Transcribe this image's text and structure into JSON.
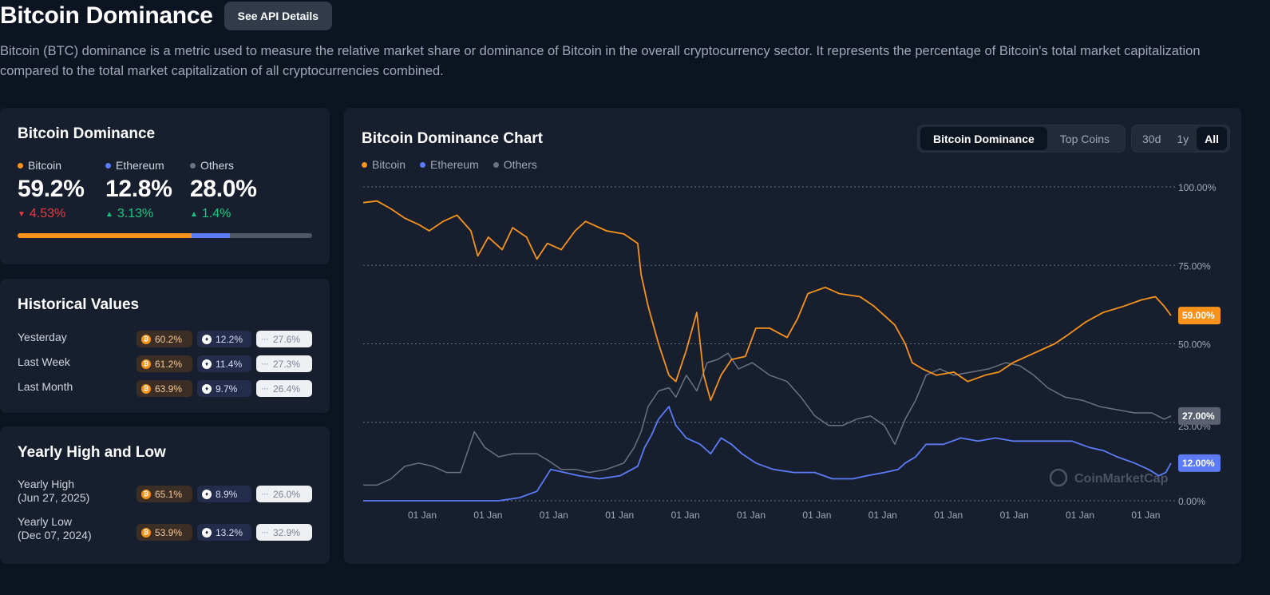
{
  "header": {
    "title": "Bitcoin Dominance",
    "api_button": "See API Details",
    "description": "Bitcoin (BTC) dominance is a metric used to measure the relative market share or dominance of Bitcoin in the overall cryptocurrency sector. It represents the percentage of Bitcoin's total market capitalization compared to the total market capitalization of all cryptocurrencies combined."
  },
  "colors": {
    "bitcoin": "#f7931a",
    "ethereum": "#5b7cf6",
    "others": "#6b7280",
    "up": "#16c784",
    "down": "#ea3943"
  },
  "dominance": {
    "title": "Bitcoin Dominance",
    "coins": [
      {
        "name": "Bitcoin",
        "value": "59.2%",
        "change": "4.53%",
        "direction": "down",
        "share": 59.2
      },
      {
        "name": "Ethereum",
        "value": "12.8%",
        "change": "3.13%",
        "direction": "up",
        "share": 12.8
      },
      {
        "name": "Others",
        "value": "28.0%",
        "change": "1.4%",
        "direction": "up",
        "share": 28.0
      }
    ]
  },
  "historical": {
    "title": "Historical Values",
    "rows": [
      {
        "label": "Yesterday",
        "btc": "60.2%",
        "eth": "12.2%",
        "others": "27.6%"
      },
      {
        "label": "Last Week",
        "btc": "61.2%",
        "eth": "11.4%",
        "others": "27.3%"
      },
      {
        "label": "Last Month",
        "btc": "63.9%",
        "eth": "9.7%",
        "others": "26.4%"
      }
    ]
  },
  "yearly": {
    "title": "Yearly High and Low",
    "rows": [
      {
        "label": "Yearly High",
        "date": "(Jun 27, 2025)",
        "btc": "65.1%",
        "eth": "8.9%",
        "others": "26.0%"
      },
      {
        "label": "Yearly Low",
        "date": "(Dec 07, 2024)",
        "btc": "53.9%",
        "eth": "13.2%",
        "others": "32.9%"
      }
    ]
  },
  "chart_panel": {
    "title": "Bitcoin Dominance Chart",
    "view_tabs": [
      "Bitcoin Dominance",
      "Top Coins"
    ],
    "active_view": "Bitcoin Dominance",
    "range_tabs": [
      "30d",
      "1y",
      "All"
    ],
    "active_range": "All",
    "watermark": "CoinMarketCap"
  },
  "chart_data": {
    "type": "line",
    "title": "Bitcoin Dominance Chart",
    "ylim": [
      0,
      100
    ],
    "yticks": [
      "0.00%",
      "25.00%",
      "50.00%",
      "75.00%",
      "100.00%"
    ],
    "xtick_labels": [
      "01 Jan",
      "01 Jan",
      "01 Jan",
      "01 Jan",
      "01 Jan",
      "01 Jan",
      "01 Jan",
      "01 Jan",
      "01 Jan",
      "01 Jan",
      "01 Jan",
      "01 Jan"
    ],
    "end_labels": {
      "Bitcoin": "59.00%",
      "Others": "27.00%",
      "Ethereum": "12.00%"
    },
    "series": [
      {
        "name": "Bitcoin",
        "color": "#f7931a",
        "points": [
          [
            0,
            95
          ],
          [
            0.8,
            95.5
          ],
          [
            1.6,
            93
          ],
          [
            2.4,
            90
          ],
          [
            3.2,
            88
          ],
          [
            3.8,
            86
          ],
          [
            4.6,
            89
          ],
          [
            5.4,
            91
          ],
          [
            6.2,
            86
          ],
          [
            6.6,
            78
          ],
          [
            7.2,
            84
          ],
          [
            8,
            80
          ],
          [
            8.6,
            87
          ],
          [
            9.4,
            84
          ],
          [
            10,
            77
          ],
          [
            10.6,
            82
          ],
          [
            11.4,
            80
          ],
          [
            12.2,
            86
          ],
          [
            12.8,
            89
          ],
          [
            14,
            86
          ],
          [
            15,
            85
          ],
          [
            15.8,
            82
          ],
          [
            16,
            72
          ],
          [
            16.4,
            62
          ],
          [
            17,
            50
          ],
          [
            17.6,
            40
          ],
          [
            18,
            38
          ],
          [
            18.6,
            48
          ],
          [
            19.2,
            60
          ],
          [
            19.6,
            40
          ],
          [
            20,
            32
          ],
          [
            20.6,
            40
          ],
          [
            21.2,
            45
          ],
          [
            22,
            46
          ],
          [
            22.6,
            55
          ],
          [
            23.4,
            55
          ],
          [
            24.4,
            52
          ],
          [
            25,
            58
          ],
          [
            25.6,
            66
          ],
          [
            26.6,
            68
          ],
          [
            27.4,
            66
          ],
          [
            28.6,
            65
          ],
          [
            29.4,
            62
          ],
          [
            30,
            59
          ],
          [
            30.6,
            56
          ],
          [
            31.2,
            50
          ],
          [
            31.6,
            44
          ],
          [
            32.2,
            42
          ],
          [
            33,
            40
          ],
          [
            34,
            41
          ],
          [
            34.8,
            38
          ],
          [
            35.8,
            40
          ],
          [
            36.6,
            41
          ],
          [
            37.4,
            44
          ],
          [
            38.6,
            47
          ],
          [
            39.8,
            50
          ],
          [
            40.6,
            53
          ],
          [
            41.6,
            57
          ],
          [
            42.6,
            60
          ],
          [
            43.8,
            62
          ],
          [
            44.8,
            64
          ],
          [
            45.6,
            65
          ],
          [
            46.1,
            62
          ],
          [
            46.5,
            59
          ]
        ]
      },
      {
        "name": "Ethereum",
        "color": "#5b7cf6",
        "points": [
          [
            0,
            0
          ],
          [
            6,
            0
          ],
          [
            7.8,
            0
          ],
          [
            9,
            1
          ],
          [
            10,
            3
          ],
          [
            10.8,
            10
          ],
          [
            11.6,
            9
          ],
          [
            12.4,
            8
          ],
          [
            13.6,
            7
          ],
          [
            14.8,
            8
          ],
          [
            15.8,
            11
          ],
          [
            16.2,
            17
          ],
          [
            16.6,
            21
          ],
          [
            17,
            26
          ],
          [
            17.6,
            30
          ],
          [
            18,
            24
          ],
          [
            18.6,
            20
          ],
          [
            19.4,
            18
          ],
          [
            20,
            15
          ],
          [
            20.6,
            20
          ],
          [
            21.2,
            18
          ],
          [
            21.8,
            15
          ],
          [
            22.6,
            12
          ],
          [
            23.6,
            10
          ],
          [
            24.8,
            9
          ],
          [
            26,
            9
          ],
          [
            27,
            7
          ],
          [
            28.2,
            7
          ],
          [
            29,
            8
          ],
          [
            30,
            9
          ],
          [
            30.8,
            10
          ],
          [
            31.2,
            12
          ],
          [
            31.8,
            14
          ],
          [
            32.4,
            18
          ],
          [
            33.4,
            18
          ],
          [
            34.4,
            20
          ],
          [
            35.4,
            19
          ],
          [
            36.4,
            20
          ],
          [
            37.4,
            19
          ],
          [
            38.6,
            19
          ],
          [
            39.8,
            19
          ],
          [
            40.8,
            19
          ],
          [
            41.8,
            17
          ],
          [
            42.6,
            16
          ],
          [
            43.4,
            14
          ],
          [
            44.4,
            12
          ],
          [
            45.2,
            10
          ],
          [
            45.8,
            8
          ],
          [
            46.2,
            9
          ],
          [
            46.5,
            12
          ]
        ]
      },
      {
        "name": "Others",
        "color": "#6b7280",
        "points": [
          [
            0,
            5
          ],
          [
            0.8,
            5
          ],
          [
            1.6,
            7
          ],
          [
            2.4,
            11
          ],
          [
            3.2,
            12
          ],
          [
            4,
            11
          ],
          [
            4.8,
            9
          ],
          [
            5.6,
            9
          ],
          [
            6.4,
            22
          ],
          [
            7,
            17
          ],
          [
            7.8,
            14
          ],
          [
            8.6,
            15
          ],
          [
            9.4,
            15
          ],
          [
            10,
            15
          ],
          [
            10.6,
            13
          ],
          [
            11.4,
            10
          ],
          [
            12.2,
            10
          ],
          [
            13,
            9
          ],
          [
            14,
            10
          ],
          [
            15,
            12
          ],
          [
            15.6,
            17
          ],
          [
            16,
            22
          ],
          [
            16.4,
            30
          ],
          [
            17,
            35
          ],
          [
            17.6,
            36
          ],
          [
            18,
            33
          ],
          [
            18.6,
            40
          ],
          [
            19.2,
            35
          ],
          [
            19.8,
            44
          ],
          [
            20.4,
            45
          ],
          [
            21,
            47
          ],
          [
            21.6,
            42
          ],
          [
            22.4,
            44
          ],
          [
            23.4,
            40
          ],
          [
            24.4,
            38
          ],
          [
            25.2,
            33
          ],
          [
            26,
            27
          ],
          [
            26.8,
            24
          ],
          [
            27.6,
            24
          ],
          [
            28.4,
            26
          ],
          [
            29.2,
            27
          ],
          [
            30,
            24
          ],
          [
            30.6,
            18
          ],
          [
            31.2,
            26
          ],
          [
            31.8,
            32
          ],
          [
            32.4,
            40
          ],
          [
            33.2,
            42
          ],
          [
            34,
            40
          ],
          [
            35,
            41
          ],
          [
            36,
            42
          ],
          [
            37,
            44
          ],
          [
            37.8,
            43
          ],
          [
            38.6,
            40
          ],
          [
            39.4,
            36
          ],
          [
            40.4,
            33
          ],
          [
            41.4,
            32
          ],
          [
            42.4,
            30
          ],
          [
            43.4,
            29
          ],
          [
            44.4,
            28
          ],
          [
            45.4,
            28
          ],
          [
            46.1,
            26
          ],
          [
            46.5,
            27
          ]
        ]
      }
    ]
  }
}
